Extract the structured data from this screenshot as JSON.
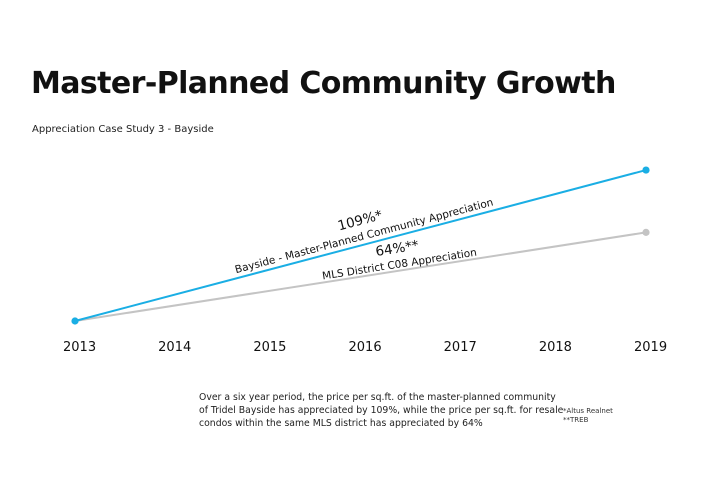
{
  "title": "Master-Planned Community Growth",
  "subtitle": "Appreciation Case Study 3 - Bayside",
  "colors": {
    "bayside": "#1aaee4",
    "mls": "#c4c4c4",
    "text": "#111111"
  },
  "chart_data": {
    "type": "line",
    "title": "Master-Planned Community Growth",
    "subtitle": "Appreciation Case Study 3 - Bayside",
    "x": [
      2013,
      2014,
      2015,
      2016,
      2017,
      2018,
      2019
    ],
    "x_tick_labels": [
      "2013",
      "2014",
      "2015",
      "2016",
      "2017",
      "2018",
      "2019"
    ],
    "xlim": [
      2013,
      2019
    ],
    "ylim": [
      0,
      130
    ],
    "grid": false,
    "xlabel": "",
    "ylabel": "",
    "series": [
      {
        "name": "Bayside - Master-Planned Community Appreciation",
        "color": "#1aaee4",
        "x": [
          2013,
          2019
        ],
        "values": [
          0,
          109
        ],
        "value_label": "109%*"
      },
      {
        "name": "MLS District C08 Appreciation",
        "color": "#c4c4c4",
        "x": [
          2013,
          2019
        ],
        "values": [
          0,
          64
        ],
        "value_label": "64%**"
      }
    ]
  },
  "footnote": {
    "lines": [
      "Over a six year period, the price per sq.ft. of the master-planned community",
      "of Tridel Bayside has appreciated by 109%, while the price per sq.ft. for resale",
      "condos within the same MLS district has appreciated by 64%"
    ]
  },
  "sources": [
    "*Altus Realnet",
    "**TREB"
  ]
}
